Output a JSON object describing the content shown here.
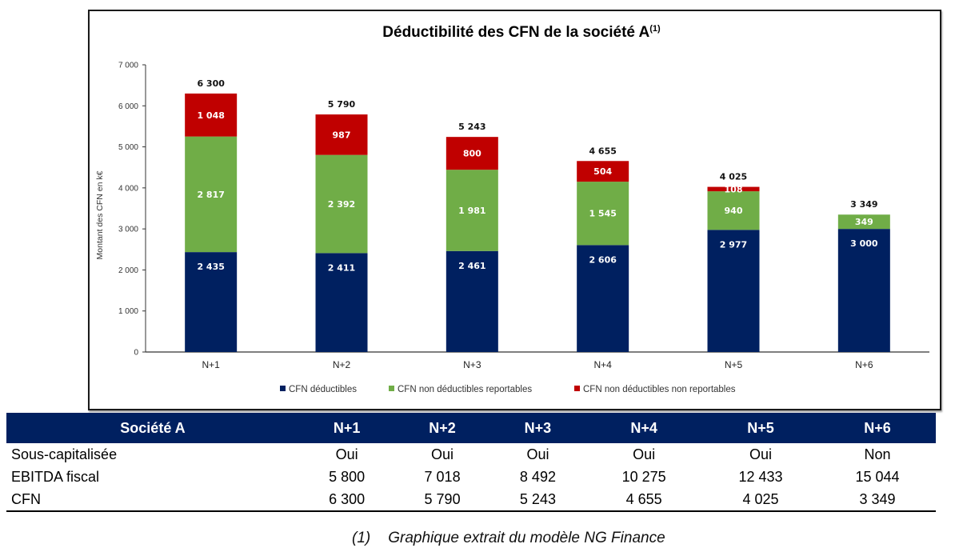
{
  "chart_data": {
    "type": "bar",
    "stacked": true,
    "title": "Déductibilité des CFN de la société A",
    "title_superscript": "(1)",
    "xlabel": "",
    "ylabel": "Montant  des CFN en k€",
    "ylim": [
      0,
      7000
    ],
    "yticks": [
      0,
      1000,
      2000,
      3000,
      4000,
      5000,
      6000,
      7000
    ],
    "ytick_labels": [
      "0",
      "1 000",
      "2 000",
      "3 000",
      "4 000",
      "5 000",
      "6 000",
      "7 000"
    ],
    "grid": false,
    "legend_position": "bottom",
    "categories": [
      "N+1",
      "N+2",
      "N+3",
      "N+4",
      "N+5",
      "N+6"
    ],
    "series": [
      {
        "name": "CFN déductibles",
        "color": "#002060",
        "values": [
          2435,
          2411,
          2461,
          2606,
          2977,
          3000
        ],
        "labels": [
          "2 435",
          "2 411",
          "2 461",
          "2 606",
          "2 977",
          "3 000"
        ]
      },
      {
        "name": "CFN non déductibles reportables",
        "color": "#70AD47",
        "values": [
          2817,
          2392,
          1981,
          1545,
          940,
          349
        ],
        "labels": [
          "2 817",
          "2 392",
          "1 981",
          "1 545",
          "940",
          "349"
        ]
      },
      {
        "name": "CFN non déductibles non reportables",
        "color": "#C00000",
        "values": [
          1048,
          987,
          800,
          504,
          108,
          0
        ],
        "labels": [
          "1 048",
          "987",
          "800",
          "504",
          "108",
          ""
        ]
      }
    ],
    "totals": [
      6300,
      5790,
      5243,
      4655,
      4025,
      3349
    ],
    "total_labels": [
      "6 300",
      "5 790",
      "5 243",
      "4 655",
      "4 025",
      "3 349"
    ]
  },
  "table": {
    "header": [
      "Société A",
      "N+1",
      "N+2",
      "N+3",
      "N+4",
      "N+5",
      "N+6"
    ],
    "header_color": "#002060",
    "rows": [
      {
        "label": "Sous-capitalisée",
        "cells": [
          "Oui",
          "Oui",
          "Oui",
          "Oui",
          "Oui",
          "Non"
        ]
      },
      {
        "label": "EBITDA fiscal",
        "cells": [
          "5 800",
          "7 018",
          "8 492",
          "10 275",
          "12 433",
          "15 044"
        ]
      },
      {
        "label": "CFN",
        "cells": [
          "6 300",
          "5 790",
          "5 243",
          "4 655",
          "4 025",
          "3 349"
        ]
      }
    ]
  },
  "footnote": {
    "number": "(1)",
    "text": "Graphique extrait du modèle NG Finance"
  }
}
